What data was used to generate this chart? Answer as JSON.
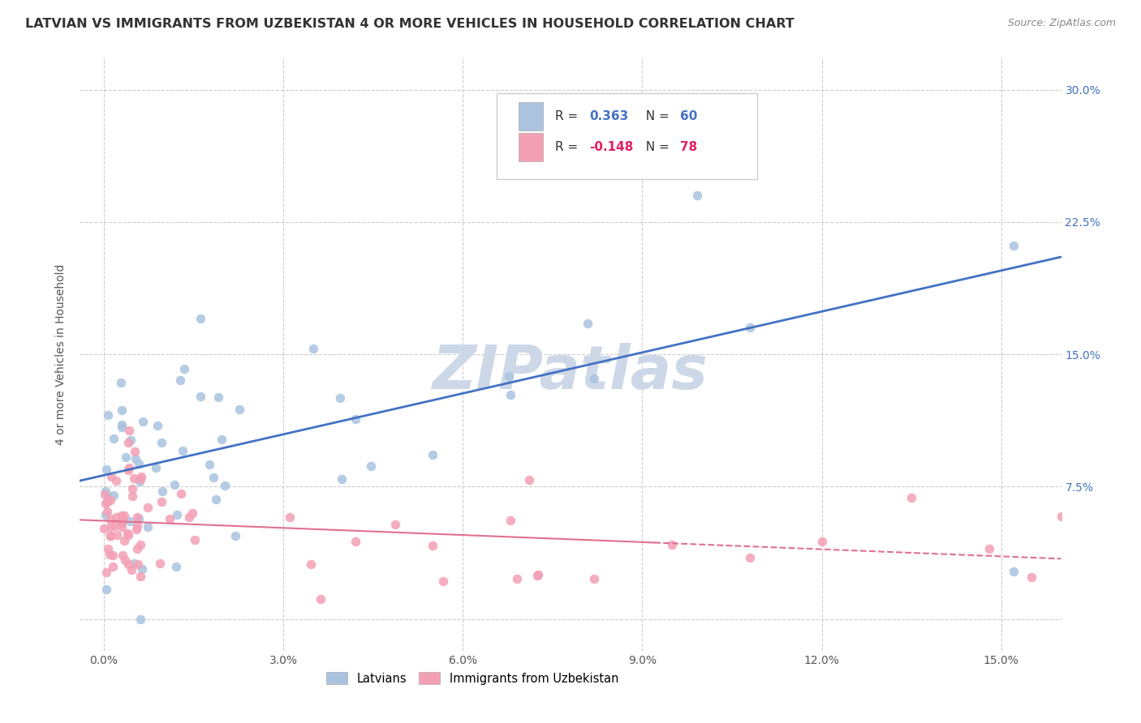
{
  "title": "LATVIAN VS IMMIGRANTS FROM UZBEKISTAN 4 OR MORE VEHICLES IN HOUSEHOLD CORRELATION CHART",
  "source": "Source: ZipAtlas.com",
  "ylabel": "4 or more Vehicles in Household",
  "ytick_vals": [
    0.0,
    0.075,
    0.15,
    0.225,
    0.3
  ],
  "ytick_labels": [
    "",
    "7.5%",
    "15.0%",
    "22.5%",
    "30.0%"
  ],
  "xtick_vals": [
    0.0,
    0.03,
    0.06,
    0.09,
    0.12,
    0.15
  ],
  "xtick_labels": [
    "0.0%",
    "3.0%",
    "6.0%",
    "9.0%",
    "12.0%",
    "15.0%"
  ],
  "xlim": [
    -0.004,
    0.16
  ],
  "ylim": [
    -0.018,
    0.318
  ],
  "latvians_R": 0.363,
  "latvians_N": 60,
  "uzbekistan_R": -0.148,
  "uzbekistan_N": 78,
  "blue_dot_color": "#aac4e0",
  "pink_dot_color": "#f4a0b4",
  "blue_line_color": "#4472c4",
  "pink_line_color": "#e07090",
  "watermark_text": "ZIPatlas",
  "watermark_color": "#ccd8e8",
  "legend_R1_label": "R = ",
  "legend_R1_val": "0.363",
  "legend_N1_label": "N = ",
  "legend_N1_val": "60",
  "legend_R2_label": "R = ",
  "legend_R2_val": "-0.148",
  "legend_N2_label": "N = ",
  "legend_N2_val": "78",
  "legend_color_blue": "#4472c4",
  "legend_color_pink": "#e02060",
  "legend_text_color": "#333333",
  "title_fontsize": 11.5,
  "source_fontsize": 9,
  "axis_label_fontsize": 10,
  "tick_fontsize": 10,
  "legend_fontsize": 11
}
